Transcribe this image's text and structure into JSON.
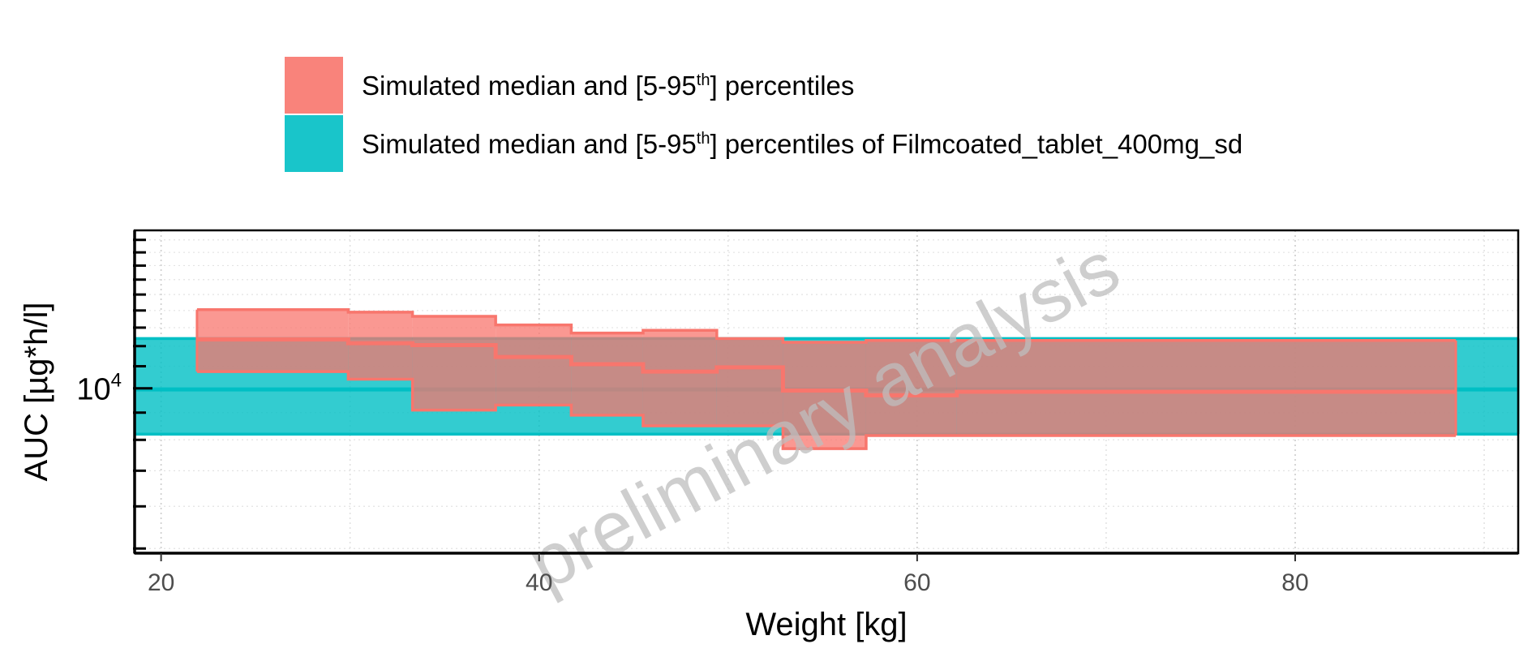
{
  "chart_data": {
    "type": "area",
    "xlabel": "Weight [kg]",
    "ylabel": "AUC [µg*h/l]",
    "x_ticks": [
      20,
      40,
      60,
      80
    ],
    "y_tick_label": {
      "base": "10",
      "exponent": "4"
    },
    "watermark": "preliminary analysis",
    "legend": {
      "placement": "top",
      "entries": [
        {
          "pre": "Simulated median and [5-95",
          "sup": "th",
          "post": "] percentiles",
          "color": "#F8766D"
        },
        {
          "pre": "Simulated median and [5-95",
          "sup": "th",
          "post": "] percentiles of Filmcoated_tablet_400mg_sd",
          "color": "#00BFC4"
        }
      ]
    },
    "x_range": [
      18.6,
      91.8
    ],
    "y_scale": "log",
    "ylim": [
      4900,
      19800
    ],
    "grid": true,
    "series": [
      {
        "name": "Simulated median and [5-95th] percentiles",
        "color": "#F8766D",
        "bins": [
          {
            "x0": 21.9,
            "x1": 29.9,
            "p5": 10750,
            "median": 12350,
            "p95": 14050
          },
          {
            "x0": 29.9,
            "x1": 33.3,
            "p5": 10400,
            "median": 12150,
            "p95": 13900
          },
          {
            "x0": 33.3,
            "x1": 37.7,
            "p5": 9100,
            "median": 12050,
            "p95": 13650
          },
          {
            "x0": 37.7,
            "x1": 41.7,
            "p5": 9300,
            "median": 11450,
            "p95": 13150
          },
          {
            "x0": 41.7,
            "x1": 45.5,
            "p5": 8900,
            "median": 11100,
            "p95": 12700
          },
          {
            "x0": 45.5,
            "x1": 49.4,
            "p5": 8500,
            "median": 10750,
            "p95": 12850
          },
          {
            "x0": 49.4,
            "x1": 52.9,
            "p5": 8500,
            "median": 10950,
            "p95": 12400
          },
          {
            "x0": 52.9,
            "x1": 57.3,
            "p5": 7700,
            "median": 9900,
            "p95": 12200
          },
          {
            "x0": 57.3,
            "x1": 62.1,
            "p5": 8150,
            "median": 9700,
            "p95": 12300
          },
          {
            "x0": 62.1,
            "x1": 88.5,
            "p5": 8150,
            "median": 9850,
            "p95": 12300
          }
        ]
      },
      {
        "name": "Simulated median and [5-95th] percentiles of Filmcoated_tablet_400mg_sd",
        "color": "#00BFC4",
        "bins": [
          {
            "x0": 18.6,
            "x1": 91.8,
            "p5": 8200,
            "median": 9950,
            "p95": 12400
          }
        ]
      }
    ]
  }
}
